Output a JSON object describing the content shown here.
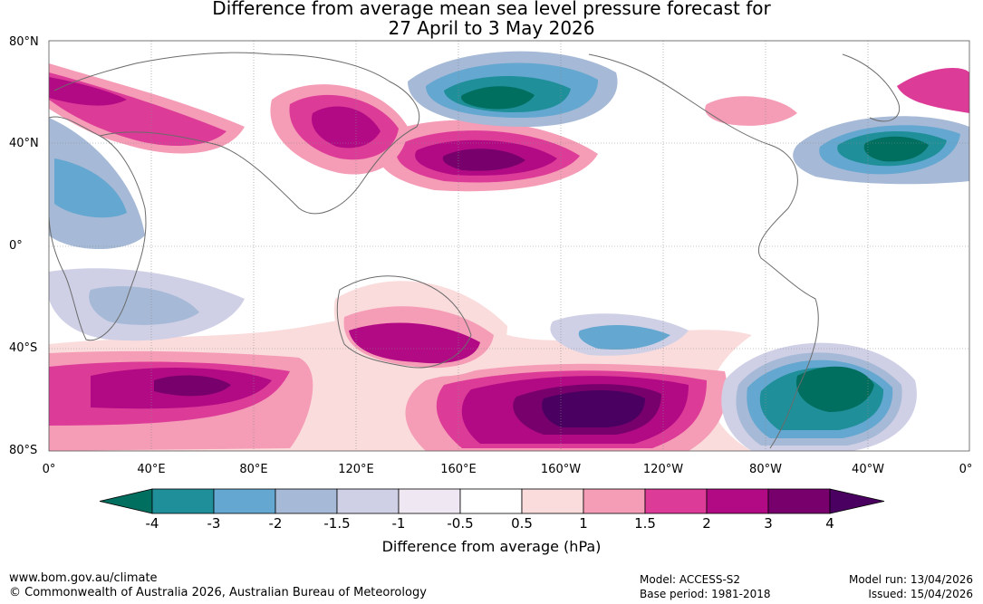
{
  "title_line1": "Difference from average mean sea level pressure forecast for",
  "title_line2": "27 April to 3 May 2026",
  "lat_labels": [
    "80°N",
    "40°N",
    "0°",
    "40°S",
    "80°S"
  ],
  "lon_labels": [
    "0°",
    "40°E",
    "80°E",
    "120°E",
    "160°E",
    "160°W",
    "120°W",
    "80°W",
    "40°W",
    "0°"
  ],
  "colorbar": {
    "ticks": [
      "-4",
      "-3",
      "-2",
      "-1.5",
      "-1",
      "-0.5",
      "0.5",
      "1",
      "1.5",
      "2",
      "3",
      "4"
    ],
    "colors": [
      "#006f5f",
      "#1f8f9a",
      "#64a7d0",
      "#a6b9d6",
      "#cfd0e6",
      "#efe8f3",
      "#ffffff",
      "#fbdcdc",
      "#f59cb6",
      "#dd3b98",
      "#b20a84",
      "#78006d",
      "#4a0060"
    ],
    "label": "Difference from average (hPa)"
  },
  "footer": {
    "website": "www.bom.gov.au/climate",
    "copyright": "© Commonwealth of Australia 2026, Australian Bureau of Meteorology",
    "model": "Model: ACCESS-S2",
    "base_period": "Base period: 1981-2018",
    "model_run": "Model run: 13/04/2026",
    "issued": "Issued: 15/04/2026"
  }
}
